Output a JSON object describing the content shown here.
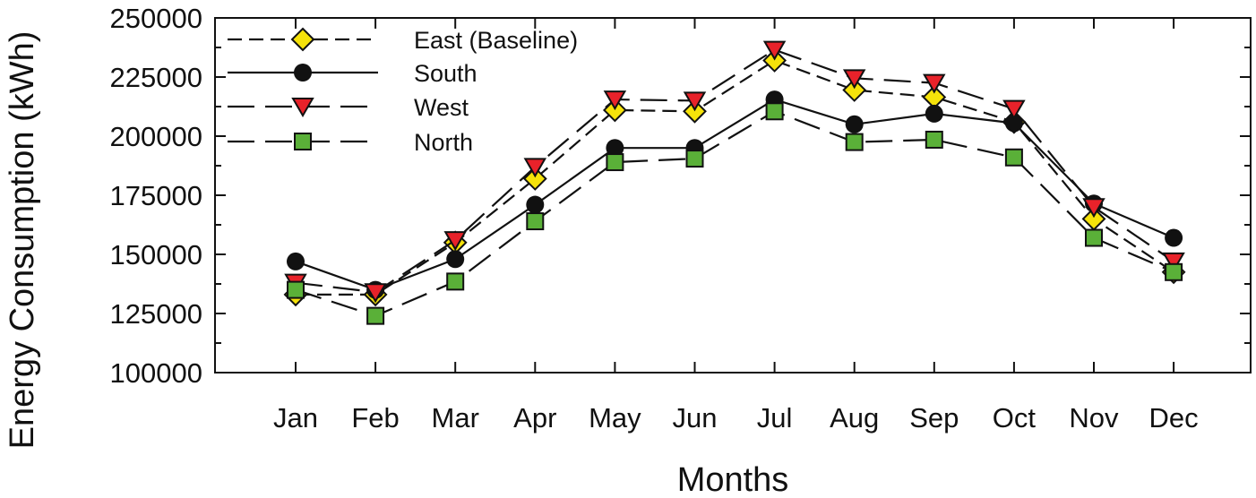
{
  "chart_data": {
    "type": "line",
    "title": "",
    "xlabel": "Months",
    "ylabel": "Energy Consumption (kWh)",
    "ylim": [
      100000,
      250000
    ],
    "yticks": [
      100000,
      125000,
      150000,
      175000,
      200000,
      225000,
      250000
    ],
    "categories": [
      "Jan",
      "Feb",
      "Mar",
      "Apr",
      "May",
      "Jun",
      "Jul",
      "Aug",
      "Sep",
      "Oct",
      "Nov",
      "Dec"
    ],
    "grid": false,
    "legend": "top-left",
    "series": [
      {
        "name": "East (Baseline)",
        "values": [
          133000,
          133000,
          155000,
          182000,
          211000,
          210500,
          232000,
          219500,
          216500,
          206000,
          165000,
          142500
        ],
        "marker": "diamond",
        "line": "short-dash",
        "color": "#f5e20a"
      },
      {
        "name": "South",
        "values": [
          147000,
          135000,
          148000,
          171000,
          195000,
          195000,
          215500,
          205000,
          209500,
          205500,
          171500,
          157000
        ],
        "marker": "circle",
        "line": "solid",
        "color": "#111111"
      },
      {
        "name": "West",
        "values": [
          138000,
          134000,
          156000,
          187000,
          215500,
          215000,
          236500,
          224500,
          222500,
          211500,
          170000,
          147000
        ],
        "marker": "triangle-down",
        "line": "long-dash",
        "color": "#e8222a"
      },
      {
        "name": "North",
        "values": [
          135000,
          124000,
          138500,
          164000,
          189000,
          190500,
          210500,
          197500,
          198500,
          191000,
          157000,
          142500
        ],
        "marker": "square",
        "line": "long-dash",
        "color": "#5ab038"
      }
    ]
  }
}
